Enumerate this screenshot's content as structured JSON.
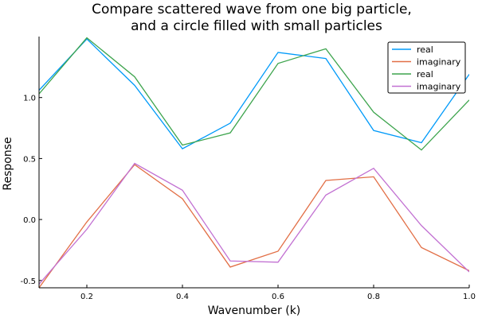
{
  "chart_data": {
    "type": "line",
    "title_lines": [
      "Compare scattered wave from one big particle,",
      "and a circle filled with small particles"
    ],
    "xlabel": "Wavenumber (k)",
    "ylabel": "Response",
    "xlim": [
      0.1,
      1.0
    ],
    "ylim": [
      -0.56,
      1.5
    ],
    "xticks": [
      0.2,
      0.4,
      0.6,
      0.8,
      1.0
    ],
    "xtick_labels": [
      "0.2",
      "0.4",
      "0.6",
      "0.8",
      "1.0"
    ],
    "yticks": [
      -0.5,
      0.0,
      0.5,
      1.0
    ],
    "ytick_labels": [
      "-0.5",
      "0.0",
      "0.5",
      "1.0"
    ],
    "grid": false,
    "legend_position": "top-right",
    "x": [
      0.1,
      0.2,
      0.3,
      0.4,
      0.5,
      0.6,
      0.7,
      0.8,
      0.9,
      1.0
    ],
    "series": [
      {
        "name": "real",
        "color": "#009AF9",
        "values": [
          1.06,
          1.48,
          1.1,
          0.58,
          0.79,
          1.37,
          1.32,
          0.73,
          0.63,
          1.19
        ]
      },
      {
        "name": "imaginary",
        "color": "#E26F46",
        "values": [
          -0.56,
          -0.02,
          0.45,
          0.17,
          -0.39,
          -0.26,
          0.32,
          0.35,
          -0.23,
          -0.42
        ]
      },
      {
        "name": "real",
        "color": "#3DA44D",
        "values": [
          1.03,
          1.49,
          1.17,
          0.61,
          0.71,
          1.28,
          1.4,
          0.88,
          0.57,
          0.98
        ]
      },
      {
        "name": "imaginary",
        "color": "#C271D2",
        "values": [
          -0.53,
          -0.08,
          0.46,
          0.24,
          -0.34,
          -0.35,
          0.2,
          0.42,
          -0.05,
          -0.43
        ]
      }
    ]
  }
}
